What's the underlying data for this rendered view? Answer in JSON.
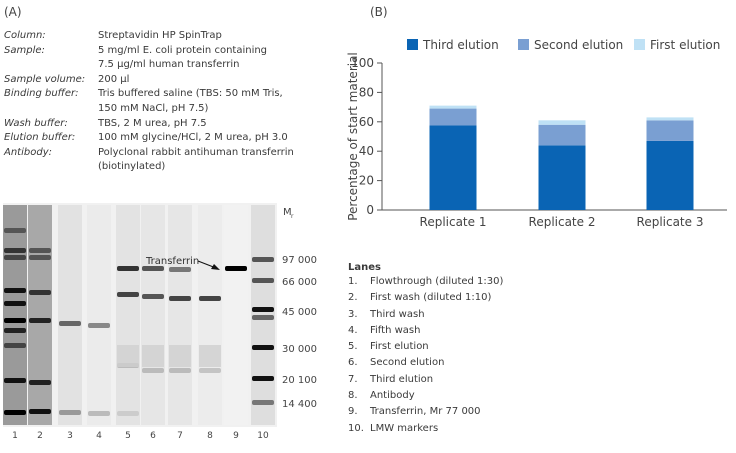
{
  "panel_a": {
    "label": "(A)",
    "parameters": [
      {
        "key": "Column:",
        "value": "Streptavidin HP SpinTrap"
      },
      {
        "key": "Sample:",
        "value": "5 mg/ml E. coli protein containing\n7.5 µg/ml human transferrin"
      },
      {
        "key": "Sample volume:",
        "value": "200 µl"
      },
      {
        "key": "Binding buffer:",
        "value": "Tris buffered saline (TBS: 50 mM Tris,\n150 mM NaCl, pH 7.5)"
      },
      {
        "key": "Wash buffer:",
        "value": "TBS, 2 M urea, pH 7.5"
      },
      {
        "key": "Elution buffer:",
        "value": "100 mM glycine/HCl, 2 M urea, pH 3.0"
      },
      {
        "key": "Antibody:",
        "value": "Polyclonal rabbit antihuman transferrin\n(biotinylated)"
      }
    ],
    "gel": {
      "mr_label": "M",
      "mr_subscript": "r",
      "markers": [
        "97 000",
        "66 000",
        "45 000",
        "30 000",
        "20 100",
        "14 400"
      ],
      "lane_numbers": [
        "1",
        "2",
        "3",
        "4",
        "5",
        "6",
        "7",
        "8",
        "9",
        "10"
      ],
      "annotation": "Transferrin"
    }
  },
  "lanes_legend": {
    "title": "Lanes",
    "items": [
      {
        "n": "1.",
        "label": "Flowthrough (diluted 1:30)"
      },
      {
        "n": "2.",
        "label": "First wash (diluted 1:10)"
      },
      {
        "n": "3.",
        "label": "Third wash"
      },
      {
        "n": "4.",
        "label": "Fifth wash"
      },
      {
        "n": "5.",
        "label": "First elution"
      },
      {
        "n": "6.",
        "label": "Second elution"
      },
      {
        "n": "7.",
        "label": "Third elution"
      },
      {
        "n": "8.",
        "label": "Antibody"
      },
      {
        "n": "9.",
        "label": "Transferrin, Mr 77 000"
      },
      {
        "n": "10.",
        "label": "LMW markers"
      }
    ]
  },
  "panel_b": {
    "label": "(B)"
  },
  "chart_data": {
    "type": "bar",
    "stacked": true,
    "categories": [
      "Replicate 1",
      "Replicate 2",
      "Replicate 3"
    ],
    "series": [
      {
        "name": "Third elution",
        "color": "#0a64b4",
        "values": [
          57.5,
          44,
          47
        ]
      },
      {
        "name": "Second elution",
        "color": "#7a9fd2",
        "values": [
          11.5,
          14,
          14
        ]
      },
      {
        "name": "First elution",
        "color": "#bfe1f5",
        "values": [
          2,
          3,
          2
        ]
      }
    ],
    "xlabel": "",
    "ylabel": "Percentage of start material",
    "ylim": [
      0,
      100
    ],
    "yticks": [
      0,
      20,
      40,
      60,
      80,
      100
    ],
    "grid": false,
    "legend": "top"
  }
}
